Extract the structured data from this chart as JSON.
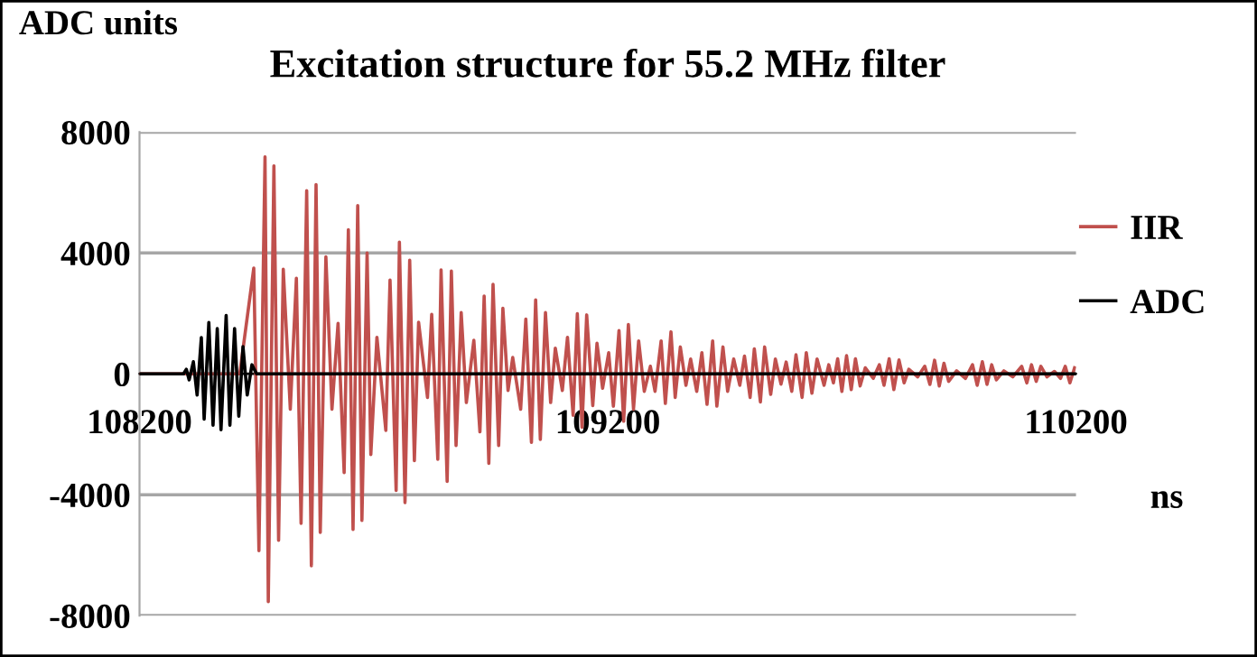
{
  "chart_data": {
    "type": "line",
    "title": "Excitation structure for 55.2 MHz filter",
    "ylabel": "ADC units",
    "xlabel": "ns",
    "xlim": [
      108200,
      110200
    ],
    "xticks": [
      108200,
      109200,
      110200
    ],
    "ylim": [
      -8000,
      8000
    ],
    "yticks": [
      -8000,
      -4000,
      0,
      4000,
      8000
    ],
    "grid": "y",
    "legend": "right",
    "marker": "none",
    "line_style": "solid",
    "series": [
      {
        "name": "IIR",
        "color": "#c0504d",
        "x": [
          108200,
          108414,
          108444,
          108455,
          108468,
          108475,
          108487,
          108497,
          108507,
          108522,
          108535,
          108545,
          108557,
          108567,
          108577,
          108586,
          108598,
          108611,
          108624,
          108637,
          108646,
          108656,
          108666,
          108675,
          108686,
          108694,
          108707,
          108726,
          108735,
          108748,
          108755,
          108767,
          108777,
          108787,
          108796,
          108815,
          108824,
          108837,
          108844,
          108857,
          108866,
          108876,
          108887,
          108898,
          108914,
          108927,
          108936,
          108946,
          108955,
          108967,
          108976,
          108987,
          108997,
          109014,
          109025,
          109037,
          109046,
          109056,
          109067,
          109078,
          109088,
          109103,
          109114,
          109126,
          109135,
          109145,
          109155,
          109168,
          109177,
          109189,
          109202,
          109212,
          109224,
          109234,
          109244,
          109255,
          109266,
          109278,
          109291,
          109301,
          109314,
          109323,
          109335,
          109344,
          109355,
          109367,
          109377,
          109390,
          109401,
          109412,
          109424,
          109433,
          109446,
          109456,
          109469,
          109482,
          109492,
          109504,
          109513,
          109526,
          109535,
          109548,
          109558,
          109570,
          109581,
          109593,
          109602,
          109615,
          109624,
          109636,
          109647,
          109662,
          109672,
          109682,
          109691,
          109700,
          109710,
          109720,
          109729,
          109739,
          109750,
          109767,
          109780,
          109790,
          109801,
          109811,
          109822,
          109833,
          109843,
          109862,
          109877,
          109888,
          109898,
          109908,
          109918,
          109928,
          109945,
          109964,
          109979,
          109989,
          110000,
          110010,
          110020,
          110030,
          110046,
          110065,
          110084,
          110095,
          110105,
          110115,
          110125,
          110138,
          110154,
          110167,
          110177,
          110187,
          110197
        ],
        "values": [
          0,
          0,
          3500,
          -5850,
          7180,
          -7540,
          6880,
          -5510,
          3460,
          -1170,
          3160,
          -4950,
          6060,
          -6350,
          6260,
          -5250,
          3870,
          -1170,
          1670,
          -3270,
          4770,
          -5150,
          5570,
          -4850,
          4000,
          -2670,
          1210,
          -1870,
          3100,
          -3860,
          4360,
          -4260,
          3760,
          -2870,
          1710,
          -780,
          1970,
          -2830,
          3440,
          -3560,
          3400,
          -2370,
          2030,
          -950,
          1110,
          -1920,
          2570,
          -2960,
          2960,
          -2370,
          2170,
          -550,
          540,
          -1170,
          1810,
          -2270,
          2450,
          -2170,
          2030,
          -950,
          850,
          -550,
          1210,
          -1370,
          1990,
          -1770,
          1950,
          -1050,
          1010,
          -480,
          700,
          -1070,
          1430,
          -1570,
          1630,
          -1170,
          1090,
          -580,
          250,
          -580,
          1090,
          -980,
          1390,
          -780,
          890,
          -380,
          490,
          -580,
          700,
          -1010,
          1090,
          -1070,
          890,
          -580,
          490,
          -380,
          590,
          -780,
          830,
          -930,
          890,
          -680,
          490,
          -340,
          390,
          -580,
          630,
          -780,
          700,
          -640,
          490,
          -380,
          300,
          -300,
          500,
          -580,
          600,
          -520,
          500,
          -400,
          200,
          -150,
          300,
          -380,
          500,
          -520,
          460,
          -300,
          150,
          -100,
          250,
          -350,
          450,
          -400,
          350,
          -250,
          100,
          -150,
          300,
          -380,
          400,
          -350,
          300,
          -200,
          100,
          -100,
          250,
          -300,
          300,
          -250,
          250,
          -100,
          80,
          -150,
          250,
          -300,
          200
        ]
      },
      {
        "name": "ADC",
        "color": "#000000",
        "x": [
          108200,
          108294,
          108300,
          108306,
          108315,
          108323,
          108332,
          108338,
          108348,
          108357,
          108366,
          108374,
          108385,
          108393,
          108403,
          108412,
          108421,
          108430,
          108440,
          108450,
          110200
        ],
        "values": [
          0,
          0,
          150,
          -200,
          400,
          -700,
          1200,
          -1500,
          1700,
          -1700,
          1500,
          -1850,
          1930,
          -1700,
          1500,
          -1400,
          900,
          -700,
          300,
          0,
          0
        ]
      }
    ]
  }
}
